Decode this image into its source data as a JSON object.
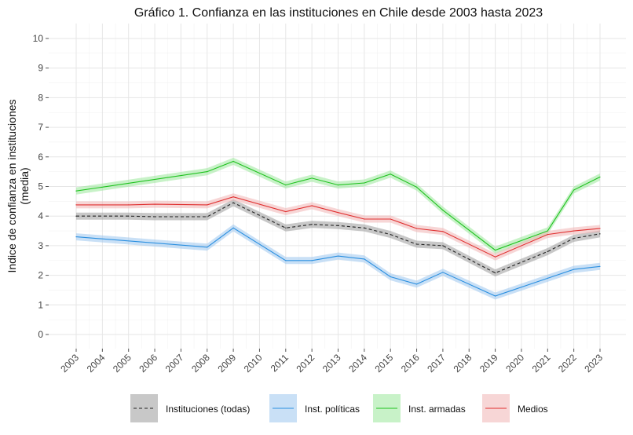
{
  "chart_data": {
    "type": "line",
    "title": "Gráfico 1. Confianza en las instituciones en Chile desde 2003 hasta 2023",
    "xlabel": "",
    "ylabel": [
      "Indice de confianza en instituciones",
      "(media)"
    ],
    "ylim": [
      0,
      10
    ],
    "yticks": [
      "0",
      "1",
      "2",
      "3",
      "4",
      "5",
      "6",
      "7",
      "8",
      "9",
      "10"
    ],
    "categories": [
      "2003",
      "2004",
      "2005",
      "2006",
      "2007",
      "2008",
      "2009",
      "2010",
      "2011",
      "2012",
      "2013",
      "2014",
      "2015",
      "2016",
      "2017",
      "2018",
      "2019",
      "2020",
      "2021",
      "2022",
      "2023"
    ],
    "grid": true,
    "legend_position": "bottom",
    "series": [
      {
        "name": "Instituciones (todas)",
        "color": "#222222",
        "band_color": "#9a9a9a",
        "dashed": true,
        "points": [
          [
            2003,
            4.0
          ],
          [
            2005,
            4.0
          ],
          [
            2006,
            3.98
          ],
          [
            2008,
            3.98
          ],
          [
            2009,
            4.45
          ],
          [
            2011,
            3.6
          ],
          [
            2012,
            3.72
          ],
          [
            2013,
            3.68
          ],
          [
            2014,
            3.6
          ],
          [
            2015,
            3.38
          ],
          [
            2016,
            3.05
          ],
          [
            2017,
            3.0
          ],
          [
            2019,
            2.08
          ],
          [
            2021,
            2.8
          ],
          [
            2022,
            3.25
          ],
          [
            2023,
            3.4
          ]
        ]
      },
      {
        "name": "Inst. políticas",
        "color": "#2a8fe0",
        "band_color": "#9cc6ee",
        "dashed": false,
        "points": [
          [
            2003,
            3.3
          ],
          [
            2008,
            2.95
          ],
          [
            2009,
            3.6
          ],
          [
            2011,
            2.5
          ],
          [
            2012,
            2.5
          ],
          [
            2013,
            2.65
          ],
          [
            2014,
            2.55
          ],
          [
            2015,
            1.95
          ],
          [
            2016,
            1.7
          ],
          [
            2017,
            2.1
          ],
          [
            2019,
            1.3
          ],
          [
            2021,
            1.9
          ],
          [
            2022,
            2.2
          ],
          [
            2023,
            2.3
          ]
        ]
      },
      {
        "name": "Inst. armadas",
        "color": "#1ec21e",
        "band_color": "#9be89b",
        "dashed": false,
        "points": [
          [
            2003,
            4.85
          ],
          [
            2008,
            5.5
          ],
          [
            2009,
            5.85
          ],
          [
            2011,
            5.05
          ],
          [
            2012,
            5.28
          ],
          [
            2013,
            5.05
          ],
          [
            2014,
            5.12
          ],
          [
            2015,
            5.42
          ],
          [
            2016,
            4.98
          ],
          [
            2017,
            4.2
          ],
          [
            2019,
            2.85
          ],
          [
            2021,
            3.5
          ],
          [
            2022,
            4.88
          ],
          [
            2023,
            5.32
          ]
        ]
      },
      {
        "name": "Medios",
        "color": "#e03030",
        "band_color": "#f0b4b4",
        "dashed": false,
        "points": [
          [
            2003,
            4.38
          ],
          [
            2005,
            4.38
          ],
          [
            2006,
            4.4
          ],
          [
            2008,
            4.38
          ],
          [
            2009,
            4.65
          ],
          [
            2011,
            4.15
          ],
          [
            2012,
            4.35
          ],
          [
            2013,
            4.12
          ],
          [
            2014,
            3.9
          ],
          [
            2015,
            3.9
          ],
          [
            2016,
            3.58
          ],
          [
            2017,
            3.48
          ],
          [
            2019,
            2.62
          ],
          [
            2021,
            3.38
          ],
          [
            2022,
            3.5
          ],
          [
            2023,
            3.58
          ]
        ]
      }
    ]
  }
}
